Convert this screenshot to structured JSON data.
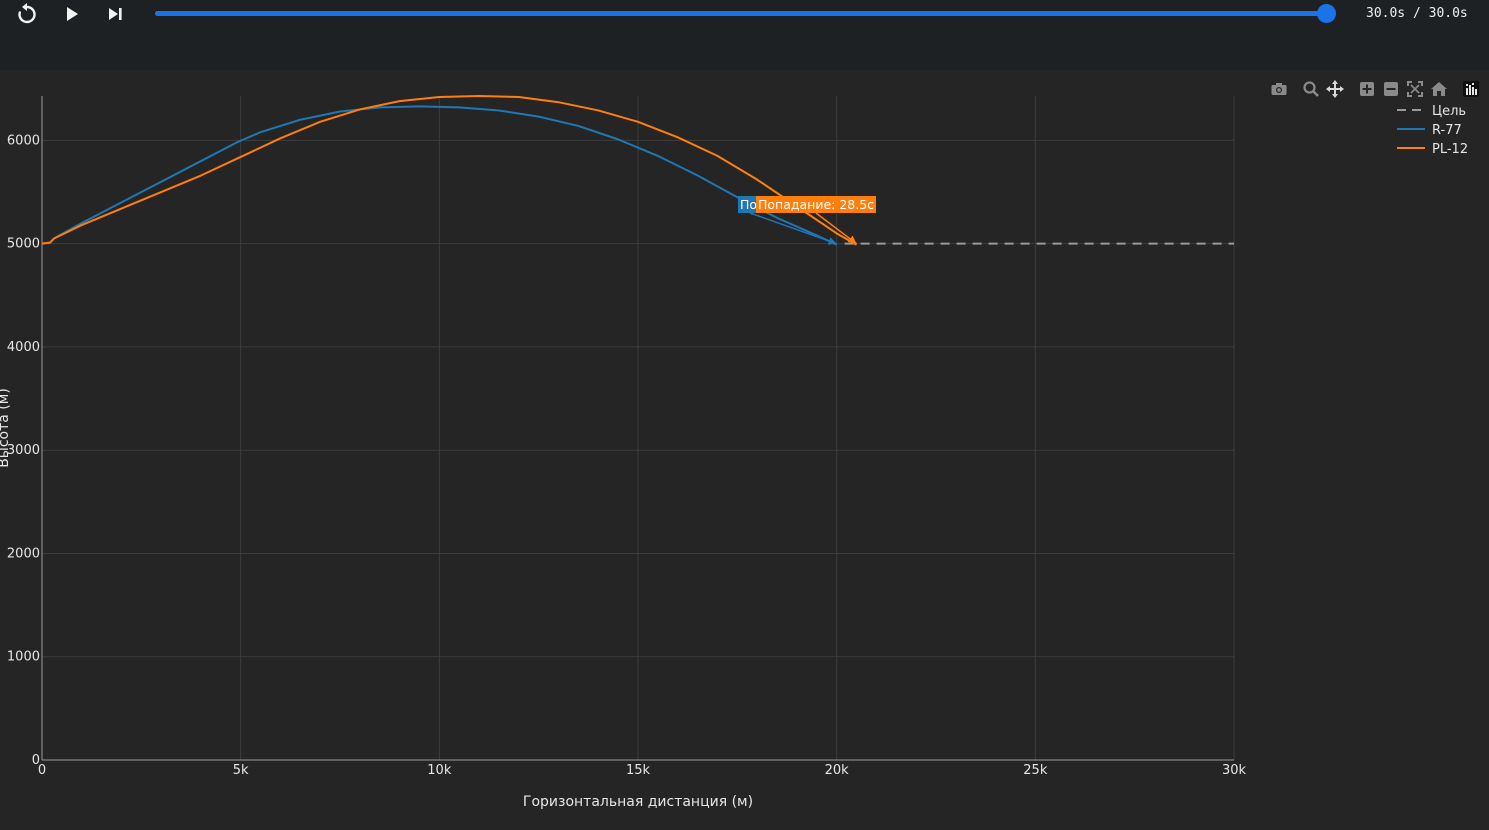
{
  "player": {
    "time_readout": "30.0s / 30.0s",
    "progress": 1.0,
    "controls": [
      "restart-icon",
      "play-icon",
      "skip-to-end-icon"
    ]
  },
  "modebar": {
    "icons": [
      "camera-icon",
      "zoom-icon",
      "pan-icon",
      "zoom-in-icon",
      "zoom-out-icon",
      "autoscale-icon",
      "reset-axes-icon",
      "plotly-logo-icon"
    ]
  },
  "colors": {
    "R-77": "#1f77b4",
    "PL-12": "#ff7f0e",
    "target": "#9a9a9a",
    "grid": "#3c3c3c",
    "plot_bg": "#252526",
    "page_bg": "#1e2124",
    "slider": "#1a73e8"
  },
  "chart_data": {
    "type": "line",
    "title": "",
    "xlabel": "Горизонтальная дистанция (м)",
    "ylabel": "Высота (м)",
    "xlim": [
      0,
      30000
    ],
    "ylim": [
      0,
      6400
    ],
    "x_ticks": [
      0,
      5000,
      10000,
      15000,
      20000,
      25000,
      30000
    ],
    "x_tick_labels": [
      "0",
      "5k",
      "10k",
      "15k",
      "20k",
      "25k",
      "30k"
    ],
    "y_ticks": [
      0,
      1000,
      2000,
      3000,
      4000,
      5000,
      6000
    ],
    "y_tick_labels": [
      "0",
      "1000",
      "2000",
      "3000",
      "4000",
      "5000",
      "6000"
    ],
    "grid": true,
    "legend_position": "top-right",
    "series": [
      {
        "name": "Цель",
        "dash": "dashed",
        "x": [
          20200,
          30000
        ],
        "y": [
          5000,
          5000
        ]
      },
      {
        "name": "R-77",
        "dash": "solid",
        "x": [
          0,
          200,
          300,
          1000,
          2000,
          3000,
          4000,
          4900,
          5500,
          6500,
          7500,
          8500,
          9500,
          10500,
          11500,
          12500,
          13500,
          14500,
          15500,
          16500,
          17500,
          18500,
          19500,
          20000
        ],
        "y": [
          5000,
          5010,
          5050,
          5200,
          5400,
          5600,
          5800,
          5980,
          6080,
          6200,
          6280,
          6320,
          6330,
          6320,
          6290,
          6230,
          6140,
          6010,
          5850,
          5660,
          5450,
          5250,
          5080,
          4990
        ]
      },
      {
        "name": "PL-12",
        "dash": "solid",
        "x": [
          0,
          200,
          300,
          1000,
          2000,
          3000,
          4000,
          5000,
          6000,
          7000,
          8000,
          9000,
          10000,
          11000,
          12000,
          13000,
          14000,
          15000,
          16000,
          17000,
          18000,
          19000,
          20000,
          20500
        ],
        "y": [
          5000,
          5010,
          5050,
          5180,
          5340,
          5500,
          5660,
          5840,
          6020,
          6180,
          6300,
          6380,
          6420,
          6430,
          6420,
          6370,
          6290,
          6180,
          6030,
          5850,
          5620,
          5360,
          5100,
          4990
        ]
      }
    ],
    "annotations": [
      {
        "text": "По",
        "series": "R-77",
        "x": 20000,
        "y": 5000
      },
      {
        "text": "Попадание: 28.5с",
        "series": "PL-12",
        "x": 20500,
        "y": 5000
      }
    ]
  }
}
